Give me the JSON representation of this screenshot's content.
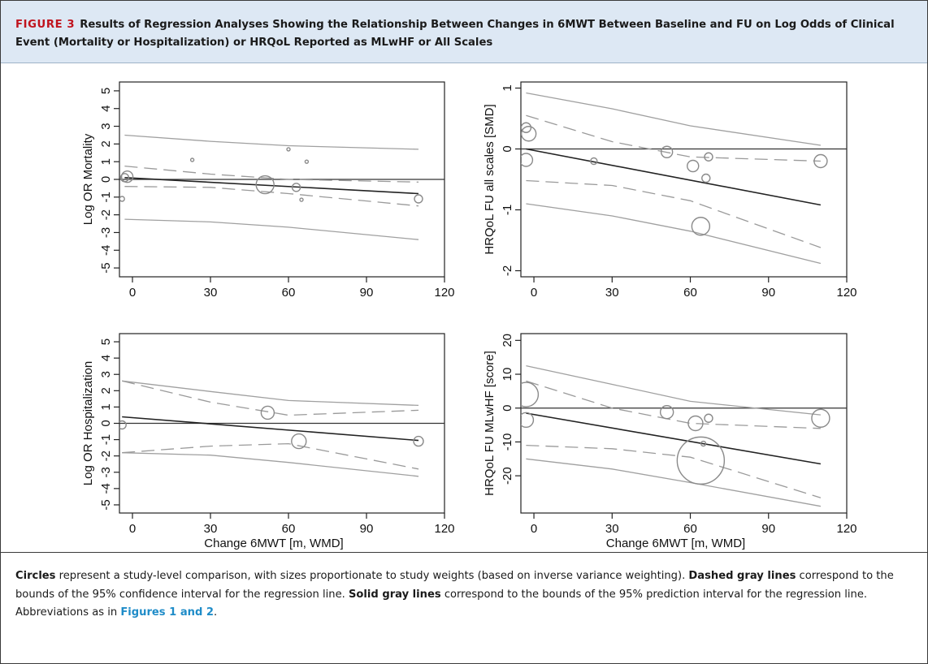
{
  "caption": {
    "figure_label": "FIGURE 3",
    "title": "Results of Regression Analyses Showing the Relationship Between Changes in 6MWT Between Baseline and FU on Log Odds of Clinical Event (Mortality or Hospitalization) or HRQoL Reported as MLwHF or All Scales"
  },
  "footnote": {
    "s1_bold": "Circles",
    "s1_text": " represent a study-level comparison, with sizes proportionate to study weights (based on inverse variance weighting). ",
    "s2_bold": "Dashed gray lines",
    "s2_text": " correspond to the bounds of the 95% confidence interval for the regression line. ",
    "s3_bold": "Solid gray lines",
    "s3_text": " correspond to the bounds of the 95% prediction interval for the regression line. Abbreviations as in ",
    "link": "Figures 1 and 2",
    "end": "."
  },
  "colors": {
    "header_bg": "#dde8f4",
    "accent_red": "#c0141e",
    "link_blue": "#1f8cc8",
    "pred_line": "#a0a0a0",
    "ci_line": "#9a9a9a",
    "reg_line": "#222222"
  },
  "chart_data": [
    {
      "type": "scatter",
      "panel": "top-left",
      "xlabel": "",
      "ylabel": "Log OR Mortality",
      "xlim": [
        -5,
        120
      ],
      "ylim": [
        -5.5,
        5.5
      ],
      "xticks": [
        0,
        30,
        60,
        90,
        120
      ],
      "yticks": [
        -5,
        -4,
        -3,
        -2,
        -1,
        0,
        1,
        2,
        3,
        4,
        5
      ],
      "points": [
        {
          "x": -4,
          "y": -1.1,
          "size": 3
        },
        {
          "x": -3,
          "y": 0.1,
          "size": 5
        },
        {
          "x": -2,
          "y": 0.15,
          "size": 7
        },
        {
          "x": 23,
          "y": 1.1,
          "size": 2
        },
        {
          "x": 51,
          "y": -0.3,
          "size": 11
        },
        {
          "x": 60,
          "y": 1.7,
          "size": 2
        },
        {
          "x": 63,
          "y": -0.45,
          "size": 5
        },
        {
          "x": 65,
          "y": -1.15,
          "size": 2
        },
        {
          "x": 67,
          "y": 1.0,
          "size": 2
        },
        {
          "x": 110,
          "y": -1.1,
          "size": 5
        }
      ],
      "regression": [
        {
          "x": -3,
          "y": 0.1
        },
        {
          "x": 110,
          "y": -0.8
        }
      ],
      "ci_upper": [
        {
          "x": -3,
          "y": 0.75
        },
        {
          "x": 30,
          "y": 0.3
        },
        {
          "x": 60,
          "y": 0.0
        },
        {
          "x": 110,
          "y": -0.15
        }
      ],
      "ci_lower": [
        {
          "x": -3,
          "y": -0.4
        },
        {
          "x": 30,
          "y": -0.45
        },
        {
          "x": 60,
          "y": -0.8
        },
        {
          "x": 110,
          "y": -1.5
        }
      ],
      "pi_upper": [
        {
          "x": -3,
          "y": 2.5
        },
        {
          "x": 30,
          "y": 2.15
        },
        {
          "x": 60,
          "y": 1.9
        },
        {
          "x": 110,
          "y": 1.7
        }
      ],
      "pi_lower": [
        {
          "x": -3,
          "y": -2.25
        },
        {
          "x": 30,
          "y": -2.4
        },
        {
          "x": 60,
          "y": -2.7
        },
        {
          "x": 110,
          "y": -3.4
        }
      ]
    },
    {
      "type": "scatter",
      "panel": "top-right",
      "xlabel": "",
      "ylabel": "HRQoL FU all scales [SMD]",
      "xlim": [
        -5,
        120
      ],
      "ylim": [
        -2.1,
        1.1
      ],
      "xticks": [
        0,
        30,
        60,
        90,
        120
      ],
      "yticks": [
        -2,
        -1,
        0,
        1
      ],
      "points": [
        {
          "x": -3,
          "y": 0.35,
          "size": 6
        },
        {
          "x": -2,
          "y": 0.25,
          "size": 9
        },
        {
          "x": -3,
          "y": -0.18,
          "size": 8
        },
        {
          "x": 23,
          "y": -0.2,
          "size": 4
        },
        {
          "x": 51,
          "y": -0.05,
          "size": 7
        },
        {
          "x": 61,
          "y": -0.28,
          "size": 7
        },
        {
          "x": 64,
          "y": -1.27,
          "size": 11
        },
        {
          "x": 66,
          "y": -0.48,
          "size": 5
        },
        {
          "x": 67,
          "y": -0.13,
          "size": 5
        },
        {
          "x": 110,
          "y": -0.2,
          "size": 8
        }
      ],
      "regression": [
        {
          "x": -3,
          "y": 0.0
        },
        {
          "x": 110,
          "y": -0.92
        }
      ],
      "ci_upper": [
        {
          "x": -3,
          "y": 0.55
        },
        {
          "x": 30,
          "y": 0.12
        },
        {
          "x": 60,
          "y": -0.13
        },
        {
          "x": 110,
          "y": -0.2
        }
      ],
      "ci_lower": [
        {
          "x": -3,
          "y": -0.52
        },
        {
          "x": 30,
          "y": -0.6
        },
        {
          "x": 60,
          "y": -0.85
        },
        {
          "x": 110,
          "y": -1.62
        }
      ],
      "pi_upper": [
        {
          "x": -3,
          "y": 0.92
        },
        {
          "x": 30,
          "y": 0.66
        },
        {
          "x": 60,
          "y": 0.38
        },
        {
          "x": 110,
          "y": 0.06
        }
      ],
      "pi_lower": [
        {
          "x": -3,
          "y": -0.9
        },
        {
          "x": 30,
          "y": -1.1
        },
        {
          "x": 60,
          "y": -1.35
        },
        {
          "x": 110,
          "y": -1.88
        }
      ]
    },
    {
      "type": "scatter",
      "panel": "bottom-left",
      "xlabel": "Change 6MWT [m, WMD]",
      "ylabel": "Log OR Hospitalization",
      "xlim": [
        -5,
        120
      ],
      "ylim": [
        -5.5,
        5.5
      ],
      "xticks": [
        0,
        30,
        60,
        90,
        120
      ],
      "yticks": [
        -5,
        -4,
        -3,
        -2,
        -1,
        0,
        1,
        2,
        3,
        4,
        5
      ],
      "points": [
        {
          "x": -4,
          "y": -0.1,
          "size": 5
        },
        {
          "x": 52,
          "y": 0.65,
          "size": 8
        },
        {
          "x": 64,
          "y": -1.1,
          "size": 9
        },
        {
          "x": 110,
          "y": -1.1,
          "size": 6
        }
      ],
      "regression": [
        {
          "x": -4,
          "y": 0.4
        },
        {
          "x": 110,
          "y": -1.05
        }
      ],
      "ci_upper": [
        {
          "x": -4,
          "y": 2.6
        },
        {
          "x": 30,
          "y": 1.3
        },
        {
          "x": 60,
          "y": 0.5
        },
        {
          "x": 110,
          "y": 0.8
        }
      ],
      "ci_lower": [
        {
          "x": -4,
          "y": -1.8
        },
        {
          "x": 30,
          "y": -1.4
        },
        {
          "x": 60,
          "y": -1.25
        },
        {
          "x": 110,
          "y": -2.8
        }
      ],
      "pi_upper": [
        {
          "x": -4,
          "y": 2.6
        },
        {
          "x": 30,
          "y": 1.95
        },
        {
          "x": 60,
          "y": 1.4
        },
        {
          "x": 110,
          "y": 1.1
        }
      ],
      "pi_lower": [
        {
          "x": -4,
          "y": -1.8
        },
        {
          "x": 30,
          "y": -1.95
        },
        {
          "x": 60,
          "y": -2.4
        },
        {
          "x": 110,
          "y": -3.25
        }
      ]
    },
    {
      "type": "scatter",
      "panel": "bottom-right",
      "xlabel": "Change 6MWT [m, WMD]",
      "ylabel": "HRQoL FU MLwHF [score]",
      "xlim": [
        -5,
        120
      ],
      "ylim": [
        -31,
        22
      ],
      "xticks": [
        0,
        30,
        60,
        90,
        120
      ],
      "yticks": [
        -20,
        -10,
        0,
        10,
        20
      ],
      "points": [
        {
          "x": -3,
          "y": 4,
          "size": 15
        },
        {
          "x": -3,
          "y": -3.5,
          "size": 9
        },
        {
          "x": 51,
          "y": -1.2,
          "size": 8
        },
        {
          "x": 62,
          "y": -4.5,
          "size": 9
        },
        {
          "x": 65,
          "y": -10.5,
          "size": 3
        },
        {
          "x": 64,
          "y": -15.5,
          "size": 29
        },
        {
          "x": 67,
          "y": -3,
          "size": 5
        },
        {
          "x": 110,
          "y": -3,
          "size": 11
        }
      ],
      "regression": [
        {
          "x": -3,
          "y": -1.5
        },
        {
          "x": 110,
          "y": -16.5
        }
      ],
      "ci_upper": [
        {
          "x": -3,
          "y": 8
        },
        {
          "x": 30,
          "y": 0
        },
        {
          "x": 60,
          "y": -4.5
        },
        {
          "x": 110,
          "y": -6
        }
      ],
      "ci_lower": [
        {
          "x": -3,
          "y": -11
        },
        {
          "x": 30,
          "y": -12
        },
        {
          "x": 60,
          "y": -14.5
        },
        {
          "x": 110,
          "y": -26.5
        }
      ],
      "pi_upper": [
        {
          "x": -3,
          "y": 12.5
        },
        {
          "x": 30,
          "y": 7
        },
        {
          "x": 60,
          "y": 2
        },
        {
          "x": 110,
          "y": -2
        }
      ],
      "pi_lower": [
        {
          "x": -3,
          "y": -15
        },
        {
          "x": 30,
          "y": -18
        },
        {
          "x": 60,
          "y": -22
        },
        {
          "x": 110,
          "y": -29
        }
      ]
    }
  ]
}
